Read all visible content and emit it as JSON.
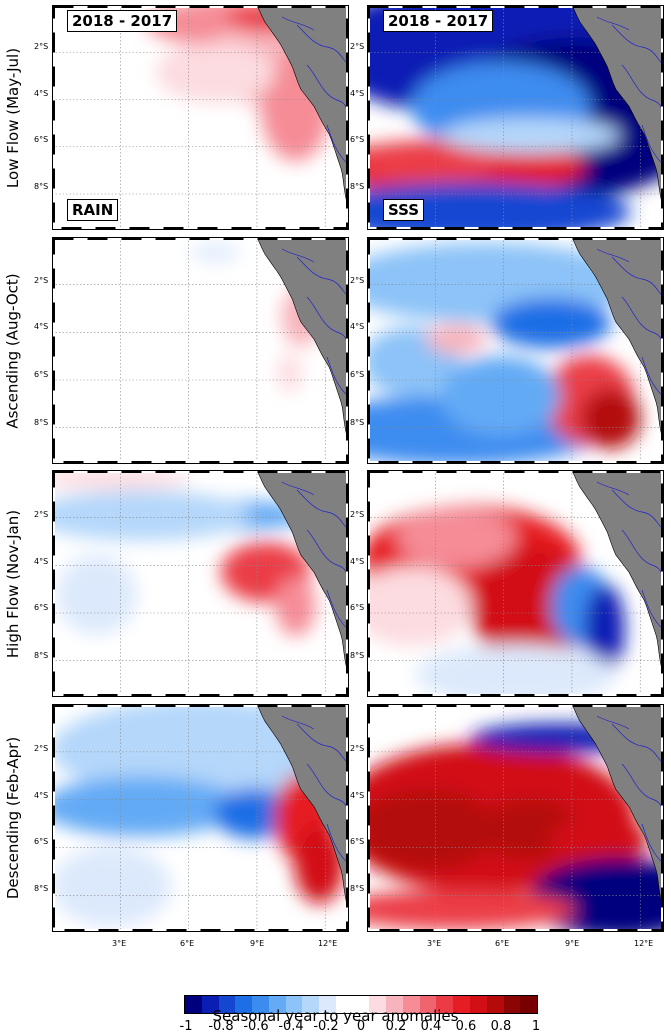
{
  "figure": {
    "rows": [
      {
        "label": "Low Flow (May-Jul)"
      },
      {
        "label": "Ascending (Aug-Oct)"
      },
      {
        "label": "High Flow (Nov-Jan)"
      },
      {
        "label": "Descending (Feb-Apr)"
      }
    ],
    "panel_title": "2018 - 2017",
    "rain_tag": "RAIN",
    "sss_tag": "SSS",
    "lat_ticks": [
      "2°S",
      "4°S",
      "6°S",
      "8°S"
    ],
    "lon_ticks": [
      "3°E",
      "6°E",
      "9°E",
      "12°E"
    ]
  },
  "colorbar": {
    "title": "Seasonal year to year anomalies",
    "tick_labels": [
      "-1",
      "-0.8",
      "-0.6",
      "-0.4",
      "-0.2",
      "0",
      "0.2",
      "0.4",
      "0.6",
      "0.8",
      "1"
    ],
    "colors": [
      "#00007f",
      "#0a1eb4",
      "#1446d2",
      "#1e6ee6",
      "#3c8cf0",
      "#64aaf5",
      "#8cc3f8",
      "#b4d7fa",
      "#dce9fc",
      "#ffffff",
      "#ffffff",
      "#fcdce0",
      "#f8b4bc",
      "#f58c96",
      "#f06470",
      "#eb3c46",
      "#e61e24",
      "#d20f14",
      "#b40a0a",
      "#8c0505",
      "#780000"
    ]
  },
  "colors": {
    "land": "#808080",
    "river": "#2222cc"
  }
}
